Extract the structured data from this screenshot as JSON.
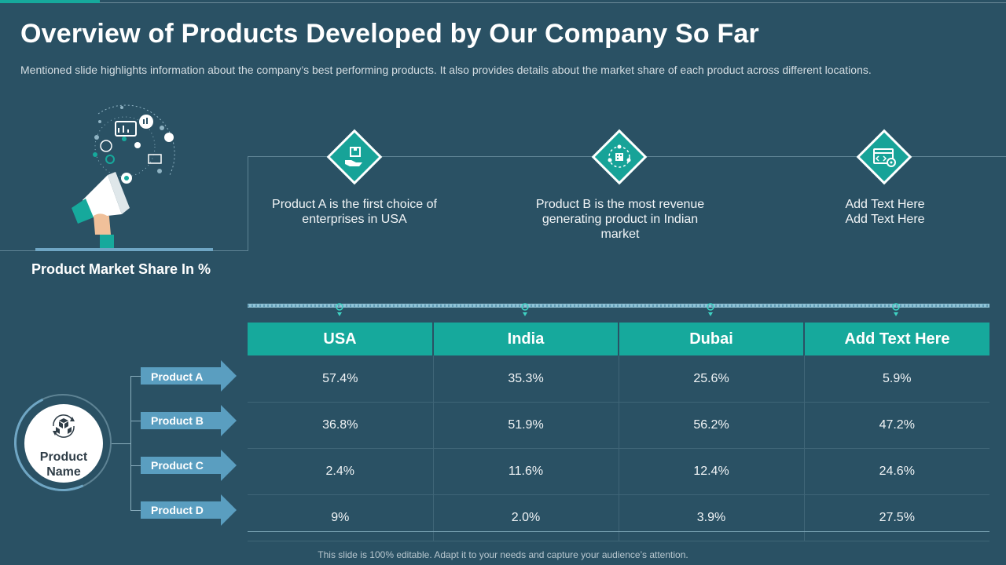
{
  "title": "Overview of Products Developed by Our Company So Far",
  "subtitle": "Mentioned slide highlights information about the company’s best performing products. It also provides details about the market share of each product across different locations.",
  "market_share_label": "Product Market Share In %",
  "features": [
    {
      "icon": "hand-box-icon",
      "text": "Product A is the first choice of enterprises in USA"
    },
    {
      "icon": "team-network-icon",
      "text": "Product B is the most revenue generating product in Indian market"
    },
    {
      "icon": "browser-code-icon",
      "text": "Add Text Here Add Text Here"
    }
  ],
  "hub": {
    "icon": "product-boxes-icon",
    "label": "Product Name"
  },
  "table": {
    "columns": [
      "USA",
      "India",
      "Dubai",
      "Add Text Here"
    ],
    "rows": [
      {
        "label": "Product A",
        "values": [
          "57.4%",
          "35.3%",
          "25.6%",
          "5.9%"
        ]
      },
      {
        "label": "Product B",
        "values": [
          "36.8%",
          "51.9%",
          "56.2%",
          "47.2%"
        ]
      },
      {
        "label": "Product C",
        "values": [
          "2.4%",
          "11.6%",
          "12.4%",
          "24.6%"
        ]
      },
      {
        "label": "Product D",
        "values": [
          "9%",
          "2.0%",
          "3.9%",
          "27.5%"
        ]
      }
    ]
  },
  "footer": "This slide is 100% editable. Adapt it to your needs and capture your audience’s attention.",
  "colors": {
    "background": "#2a5164",
    "accent": "#16a99c",
    "arrow": "#5a9ec0"
  }
}
